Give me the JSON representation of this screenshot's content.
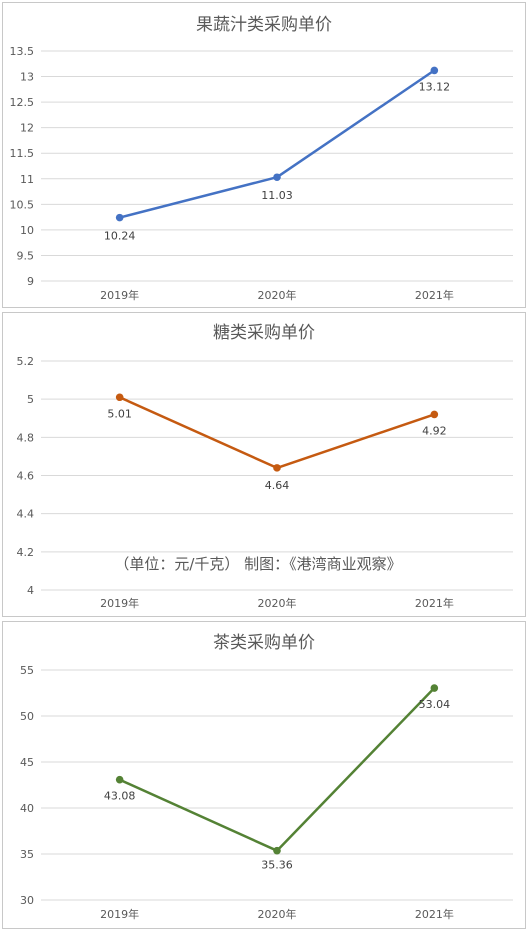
{
  "chart_data": [
    {
      "type": "line",
      "title": "果蔬汁类采购单价",
      "categories": [
        "2019年",
        "2020年",
        "2021年"
      ],
      "series": [
        {
          "values": [
            10.24,
            11.03,
            13.12
          ]
        }
      ],
      "data_labels": [
        "10.24",
        "11.03",
        "13.12"
      ],
      "y_ticks": [
        "9",
        "9.5",
        "10",
        "10.5",
        "11",
        "11.5",
        "12",
        "12.5",
        "13",
        "13.5"
      ],
      "ylim": [
        9,
        13.5
      ],
      "grid": true,
      "color": "#4472C4"
    },
    {
      "type": "line",
      "title": "糖类采购单价",
      "categories": [
        "2019年",
        "2020年",
        "2021年"
      ],
      "series": [
        {
          "values": [
            5.01,
            4.64,
            4.92
          ]
        }
      ],
      "data_labels": [
        "5.01",
        "4.64",
        "4.92"
      ],
      "y_ticks": [
        "4",
        "4.2",
        "4.4",
        "4.6",
        "4.8",
        "5",
        "5.2"
      ],
      "ylim": [
        4,
        5.2
      ],
      "grid": true,
      "color": "#C55A11",
      "note": "（单位：元/千克）     制图：《港湾商业观察》"
    },
    {
      "type": "line",
      "title": "茶类采购单价",
      "categories": [
        "2019年",
        "2020年",
        "2021年"
      ],
      "series": [
        {
          "values": [
            43.08,
            35.36,
            53.04
          ]
        }
      ],
      "data_labels": [
        "43.08",
        "35.36",
        "53.04"
      ],
      "y_ticks": [
        "30",
        "35",
        "40",
        "45",
        "50",
        "55"
      ],
      "ylim": [
        30,
        55
      ],
      "grid": true,
      "color": "#548235"
    }
  ]
}
